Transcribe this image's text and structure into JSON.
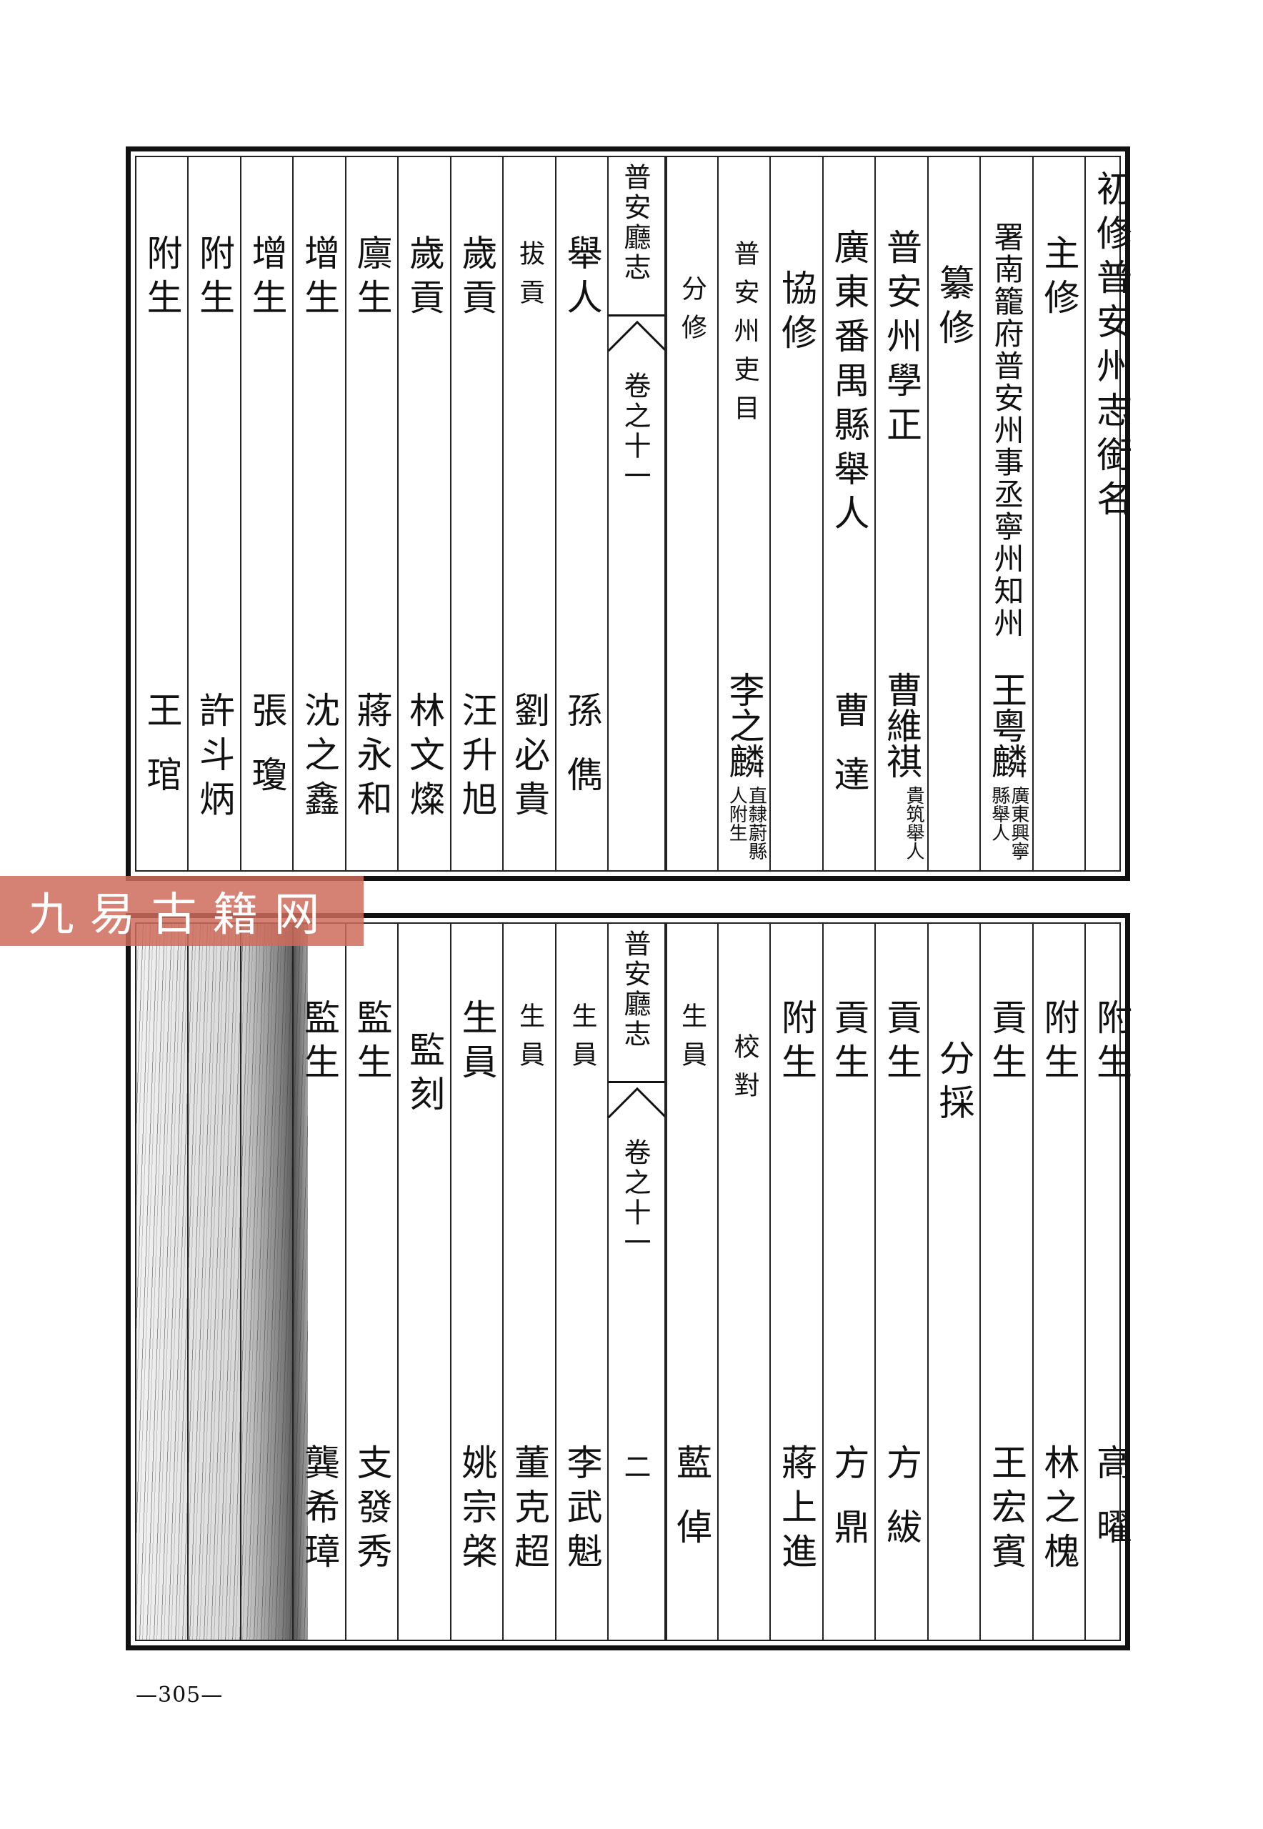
{
  "panels": {
    "top": {
      "right_columns": [
        {
          "label": "初修普安州志銜名"
        },
        {
          "label": "主修"
        },
        {
          "label": "署南籠府普安州事丞寧州知州",
          "name": "王粵麟",
          "note": "廣東興寧縣舉人"
        },
        {
          "label": "纂修"
        },
        {
          "label": "普安州學正",
          "name": "曹維祺",
          "note": "貴筑舉人"
        },
        {
          "label": "廣東番禺縣舉人",
          "name": "曹達"
        },
        {
          "label": "協修"
        },
        {
          "label": "普安州吏目",
          "name": "李之麟",
          "note": "直隸蔚縣人附生"
        },
        {
          "label": "分修"
        }
      ],
      "fold": {
        "title": "普安廳志",
        "volume": "卷之十一"
      },
      "left_columns": [
        {
          "label": "舉人",
          "name": "孫儁"
        },
        {
          "label": "拔貢",
          "name": "劉必貴"
        },
        {
          "label": "歲貢",
          "name": "汪升旭"
        },
        {
          "label": "歲貢",
          "name": "林文燦"
        },
        {
          "label": "廪生",
          "name": "蔣永和"
        },
        {
          "label": "增生",
          "name": "沈之鑫"
        },
        {
          "label": "增生",
          "name": "張瓊"
        },
        {
          "label": "附生",
          "name": "許斗炳"
        },
        {
          "label": "附生",
          "name": "王琯"
        }
      ]
    },
    "bottom": {
      "right_columns": [
        {
          "label": "附生",
          "name": "高曜"
        },
        {
          "label": "附生",
          "name": "林之槐"
        },
        {
          "label": "貢生",
          "name": "王宏賓"
        },
        {
          "label": "分採"
        },
        {
          "label": "貢生",
          "name": "方紱"
        },
        {
          "label": "貢生",
          "name": "方鼎"
        },
        {
          "label": "附生",
          "name": "蔣上進"
        },
        {
          "label": "校對"
        },
        {
          "label": "生員",
          "name": "藍倬"
        }
      ],
      "fold": {
        "title": "普安廳志",
        "volume": "卷之十一",
        "page": "二"
      },
      "left_columns": [
        {
          "label": "生員",
          "name": "李武魁"
        },
        {
          "label": "生員",
          "name": "董克超"
        },
        {
          "label": "生員",
          "name": "姚宗棨"
        },
        {
          "label": "監刻"
        },
        {
          "label": "監生",
          "name": "支發秀"
        },
        {
          "label": "監生",
          "name": "龔希璋"
        }
      ]
    }
  },
  "page_number": "—305—",
  "watermark": "九易古籍网"
}
